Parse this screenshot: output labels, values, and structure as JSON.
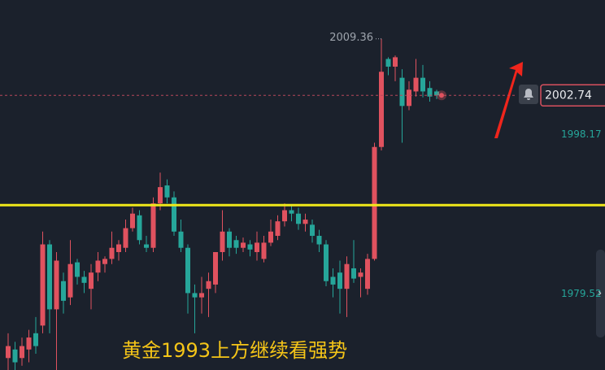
{
  "chart_data": {
    "type": "candlestick",
    "ylim": [
      1970.6,
      2013.9
    ],
    "yticks": [
      1979.52,
      1998.17
    ],
    "up_color": "#e0525f",
    "down_color": "#26a69a",
    "open": [
      1972.0,
      1973.0,
      1972.0,
      1973.0,
      1974.9,
      1975.8,
      1985.3,
      1977.7,
      1981.0,
      1979.1,
      1983.2,
      1981.5,
      1980.1,
      1982.0,
      1983.0,
      1983.6,
      1984.4,
      1984.9,
      1987.2,
      1988.7,
      1985.3,
      1984.9,
      1990.1,
      1992.2,
      1990.8,
      1986.8,
      1984.9,
      1979.6,
      1979.1,
      1980.1,
      1980.6,
      1984.4,
      1986.8,
      1985.8,
      1984.9,
      1985.3,
      1984.4,
      1983.6,
      1985.5,
      1986.3,
      1988.0,
      1989.3,
      1988.9,
      1987.7,
      1987.6,
      1986.3,
      1985.3,
      1981.5,
      1982.0,
      1980.1,
      1982.5,
      1981.5,
      1980.1,
      1983.6,
      1996.7,
      2007.0,
      2006.1,
      2004.8,
      2001.5,
      2003.2,
      2004.8,
      2003.6,
      2003.2
    ],
    "high": [
      1974.9,
      1973.9,
      1974.4,
      1975.3,
      1976.8,
      1986.8,
      1985.8,
      1984.4,
      1982.0,
      1985.8,
      1983.6,
      1982.2,
      1983.0,
      1984.4,
      1983.9,
      1986.8,
      1985.8,
      1988.2,
      1989.6,
      1989.3,
      1986.3,
      1990.8,
      1993.7,
      1992.9,
      1991.5,
      1988.2,
      1985.3,
      1980.6,
      1981.5,
      1982.0,
      1984.4,
      1989.3,
      1987.2,
      1986.3,
      1986.1,
      1985.8,
      1986.8,
      1986.3,
      1988.2,
      1988.7,
      1990.1,
      1989.9,
      1989.6,
      1988.9,
      1988.2,
      1987.0,
      1985.8,
      1982.5,
      1983.4,
      1983.9,
      1985.8,
      1982.5,
      1984.2,
      1997.2,
      2009.36,
      2007.2,
      2007.4,
      2005.8,
      2004.4,
      2007.0,
      2006.3,
      2004.4,
      2003.4
    ],
    "low": [
      1970.6,
      1970.6,
      1971.1,
      1971.5,
      1972.5,
      1974.9,
      1974.9,
      1970.6,
      1977.2,
      1978.2,
      1980.6,
      1979.6,
      1977.7,
      1981.0,
      1982.0,
      1983.0,
      1983.4,
      1984.4,
      1986.8,
      1985.3,
      1984.4,
      1984.4,
      1989.3,
      1990.1,
      1986.3,
      1984.4,
      1977.2,
      1974.9,
      1977.2,
      1976.8,
      1979.6,
      1983.4,
      1983.9,
      1984.2,
      1984.4,
      1983.9,
      1983.4,
      1983.2,
      1985.1,
      1985.8,
      1987.4,
      1988.0,
      1987.0,
      1986.8,
      1985.5,
      1984.4,
      1980.4,
      1979.1,
      1977.2,
      1976.8,
      1980.8,
      1979.1,
      1979.4,
      1983.4,
      1996.3,
      2005.1,
      2004.4,
      1997.2,
      2001.0,
      2002.6,
      2002.5,
      2002.0,
      2002.3
    ],
    "close": [
      1973.4,
      1971.5,
      1973.4,
      1974.4,
      1973.4,
      1985.3,
      1977.7,
      1983.4,
      1978.7,
      1983.0,
      1981.5,
      1980.8,
      1982.0,
      1983.4,
      1983.6,
      1984.9,
      1985.3,
      1987.2,
      1988.9,
      1985.8,
      1984.9,
      1990.1,
      1992.0,
      1990.8,
      1986.8,
      1984.9,
      1979.6,
      1979.1,
      1979.6,
      1981.0,
      1984.4,
      1986.8,
      1984.9,
      1984.9,
      1985.5,
      1984.7,
      1985.5,
      1985.5,
      1986.8,
      1988.0,
      1989.3,
      1988.9,
      1987.7,
      1988.2,
      1986.3,
      1985.3,
      1981.0,
      1980.6,
      1980.1,
      1983.0,
      1981.3,
      1982.0,
      1983.6,
      1996.7,
      2005.5,
      2006.1,
      2007.2,
      2001.5,
      2003.4,
      2004.8,
      2003.2,
      2002.6,
      2002.74
    ],
    "high_label": 2009.36,
    "current_price": 2002.74,
    "level_line": {
      "value": 1989.9,
      "color": "#f0e81a"
    },
    "annotation": "黄金1993上方继续看强势"
  }
}
